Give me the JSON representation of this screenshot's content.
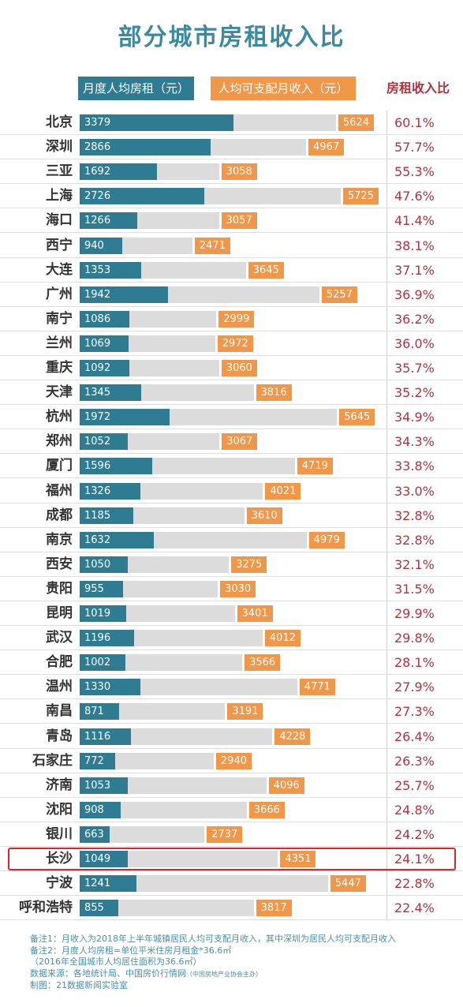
{
  "title": "部分城市房租收入比",
  "legend": {
    "rent": "月度人均房租（元）",
    "income": "人均可支配月收入（元）",
    "ratio": "房租收入比"
  },
  "colors": {
    "rent": "#2f7b91",
    "income_bar": "#dcdcdc",
    "income_tag": "#f0974a",
    "ratio_text": "#b2313e",
    "highlight": "#d9262e"
  },
  "highlight_city": "长沙",
  "chart_data": {
    "type": "bar",
    "title": "部分城市房租收入比",
    "categories": [
      "北京",
      "深圳",
      "三亚",
      "上海",
      "海口",
      "西宁",
      "大连",
      "广州",
      "南宁",
      "兰州",
      "重庆",
      "天津",
      "杭州",
      "郑州",
      "厦门",
      "福州",
      "成都",
      "南京",
      "西安",
      "贵阳",
      "昆明",
      "武汉",
      "合肥",
      "温州",
      "南昌",
      "青岛",
      "石家庄",
      "济南",
      "沈阳",
      "银川",
      "长沙",
      "宁波",
      "呼和浩特"
    ],
    "series": [
      {
        "name": "月度人均房租（元）",
        "values": [
          3379,
          2866,
          1692,
          2726,
          1266,
          940,
          1353,
          1942,
          1086,
          1069,
          1092,
          1345,
          1972,
          1052,
          1596,
          1326,
          1185,
          1632,
          1050,
          955,
          1019,
          1196,
          1002,
          1330,
          871,
          1116,
          772,
          1053,
          908,
          663,
          1049,
          1241,
          855
        ]
      },
      {
        "name": "人均可支配月收入（元）",
        "values": [
          5624,
          4967,
          3058,
          5725,
          3057,
          2471,
          3645,
          5257,
          2999,
          2972,
          3060,
          3816,
          5645,
          3067,
          4719,
          4021,
          3610,
          4979,
          3275,
          3030,
          3401,
          4012,
          3566,
          4771,
          3191,
          4228,
          2940,
          4096,
          3666,
          2737,
          4351,
          5447,
          3817
        ]
      },
      {
        "name": "房租收入比",
        "values": [
          "60.1%",
          "57.7%",
          "55.3%",
          "47.6%",
          "41.4%",
          "38.1%",
          "37.1%",
          "36.9%",
          "36.2%",
          "36.0%",
          "35.7%",
          "35.2%",
          "34.9%",
          "34.3%",
          "33.8%",
          "33.0%",
          "32.8%",
          "32.8%",
          "32.1%",
          "31.5%",
          "29.9%",
          "29.8%",
          "28.1%",
          "27.9%",
          "27.3%",
          "26.4%",
          "26.3%",
          "25.7%",
          "24.8%",
          "24.2%",
          "24.1%",
          "22.8%",
          "22.4%"
        ]
      }
    ]
  },
  "notes": {
    "line1": "备注1：月收入为2018年上半年城镇居民人均可支配月收入，其中深圳为居民人均可支配月收入",
    "line2": "备注2：月度人均房租=单位平米住房月租金*36.6㎡",
    "line3": "（2016年全国城市人均居住面积为36.6㎡）",
    "line4_prefix": "数据来源：各地统计局、中国房价行情网",
    "line4_small": "（中国房地产业协会主办）",
    "line5": "制图：21数据新闻实验室"
  }
}
